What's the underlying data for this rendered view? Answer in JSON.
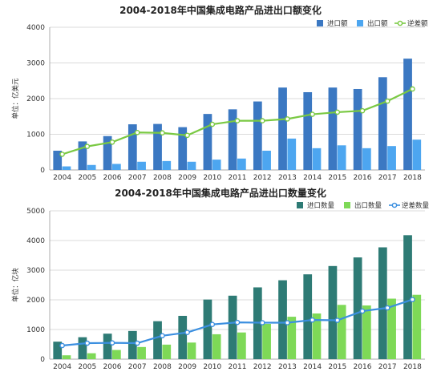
{
  "chart_data": [
    {
      "type": "bar",
      "title": "2004-2018年中国集成电路产品进出口额变化",
      "ylabel": "单位：亿美元",
      "xlabel": "",
      "categories": [
        "2004",
        "2005",
        "2006",
        "2007",
        "2008",
        "2009",
        "2010",
        "2011",
        "2012",
        "2013",
        "2014",
        "2015",
        "2016",
        "2017",
        "2018"
      ],
      "ylim": [
        0,
        4000
      ],
      "yticks": [
        "0",
        "1000",
        "2000",
        "3000",
        "4000"
      ],
      "legend_position": "top-right",
      "grid": true,
      "series": [
        {
          "name": "进口额",
          "type": "bar",
          "color": "#3b78c2",
          "values": [
            540,
            800,
            950,
            1280,
            1290,
            1200,
            1570,
            1700,
            1920,
            2310,
            2180,
            2310,
            2270,
            2600,
            3120
          ]
        },
        {
          "name": "出口额",
          "type": "bar",
          "color": "#4da6f0",
          "values": [
            100,
            140,
            170,
            230,
            250,
            230,
            290,
            320,
            540,
            880,
            610,
            690,
            610,
            670,
            850
          ]
        },
        {
          "name": "逆差额",
          "type": "line",
          "color": "#7ac943",
          "values": [
            440,
            660,
            780,
            1050,
            1040,
            970,
            1280,
            1380,
            1380,
            1430,
            1560,
            1620,
            1660,
            1930,
            2270
          ]
        }
      ]
    },
    {
      "type": "bar",
      "title": "2004-2018年中国集成电路产品进出口数量变化",
      "ylabel": "单位：亿块",
      "xlabel": "",
      "categories": [
        "2004",
        "2005",
        "2006",
        "2007",
        "2008",
        "2009",
        "2010",
        "2011",
        "2012",
        "2013",
        "2014",
        "2015",
        "2016",
        "2017",
        "2018"
      ],
      "ylim": [
        0,
        5000
      ],
      "yticks": [
        "0",
        "1000",
        "2000",
        "3000",
        "4000",
        "5000"
      ],
      "legend_position": "top-right",
      "grid": true,
      "series": [
        {
          "name": "进口数量",
          "type": "bar",
          "color": "#2e7b75",
          "values": [
            590,
            740,
            860,
            950,
            1280,
            1460,
            2010,
            2140,
            2420,
            2660,
            2860,
            3140,
            3430,
            3770,
            4180
          ]
        },
        {
          "name": "出口数量",
          "type": "bar",
          "color": "#7ed957",
          "values": [
            130,
            200,
            310,
            410,
            490,
            560,
            840,
            900,
            1190,
            1430,
            1540,
            1830,
            1810,
            2040,
            2170
          ]
        },
        {
          "name": "逆差数量",
          "type": "line",
          "color": "#3b8fe0",
          "values": [
            460,
            540,
            550,
            540,
            790,
            900,
            1170,
            1240,
            1230,
            1230,
            1320,
            1310,
            1620,
            1730,
            2010
          ]
        }
      ]
    }
  ]
}
